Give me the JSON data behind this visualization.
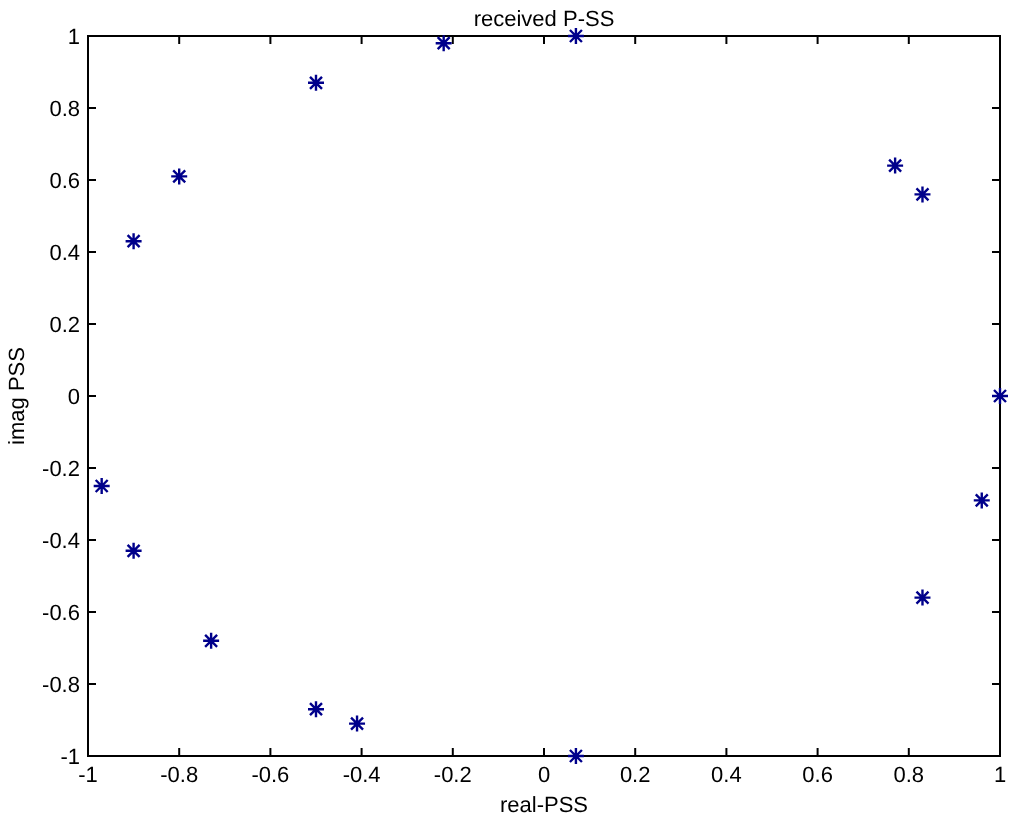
{
  "chart_data": {
    "type": "scatter",
    "title": "received P-SS",
    "xlabel": "real-PSS",
    "ylabel": "imag PSS",
    "x": [
      -0.9,
      -0.8,
      -0.5,
      -0.22,
      0.07,
      0.77,
      0.83,
      1.0,
      -0.97,
      -0.9,
      -0.73,
      -0.5,
      -0.41,
      0.07,
      0.83,
      0.96
    ],
    "series": [
      {
        "color": "#00008b",
        "values": [
          0.43,
          0.61,
          0.87,
          0.98,
          1.0,
          0.64,
          0.56,
          0.0,
          -0.25,
          -0.43,
          -0.68,
          -0.87,
          -0.91,
          -1.0,
          -0.56,
          -0.29
        ]
      }
    ],
    "xlim": [
      -1,
      1
    ],
    "ylim": [
      -1,
      1
    ],
    "xticks": [
      -1,
      -0.8,
      -0.6,
      -0.4,
      -0.2,
      0,
      0.2,
      0.4,
      0.6,
      0.8,
      1
    ],
    "yticks": [
      -1,
      -0.8,
      -0.6,
      -0.4,
      -0.2,
      0,
      0.2,
      0.4,
      0.6,
      0.8,
      1
    ],
    "grid": false,
    "marker": "cross"
  }
}
